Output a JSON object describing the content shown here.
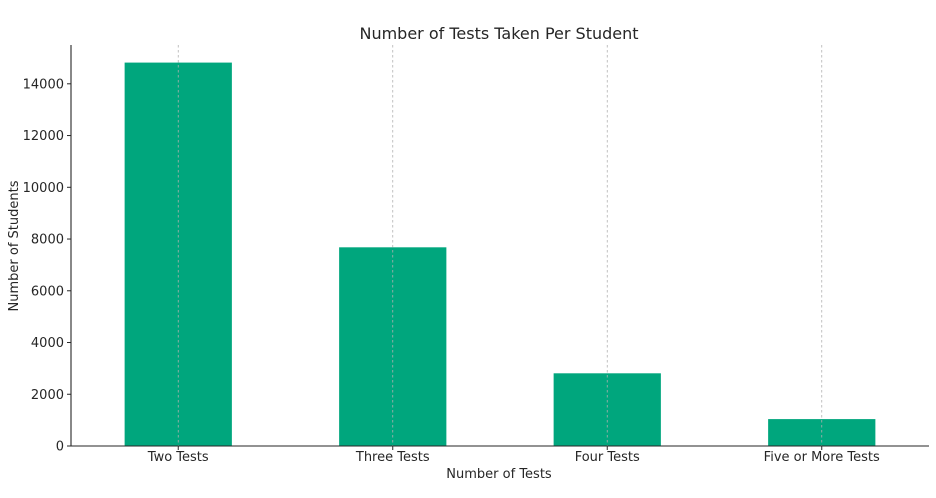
{
  "chart_data": {
    "type": "bar",
    "title": "Number of Tests Taken Per Student",
    "xlabel": "Number of Tests",
    "ylabel": "Number of Students",
    "categories": [
      "Two Tests",
      "Three Tests",
      "Four Tests",
      "Five or More Tests"
    ],
    "values": [
      14820,
      7680,
      2810,
      1040
    ],
    "ylim": [
      0,
      15500
    ],
    "yticks": [
      0,
      2000,
      4000,
      6000,
      8000,
      10000,
      12000,
      14000
    ],
    "grid": "vertical dashed, x-axis only",
    "bar_color": "#00a67d"
  }
}
